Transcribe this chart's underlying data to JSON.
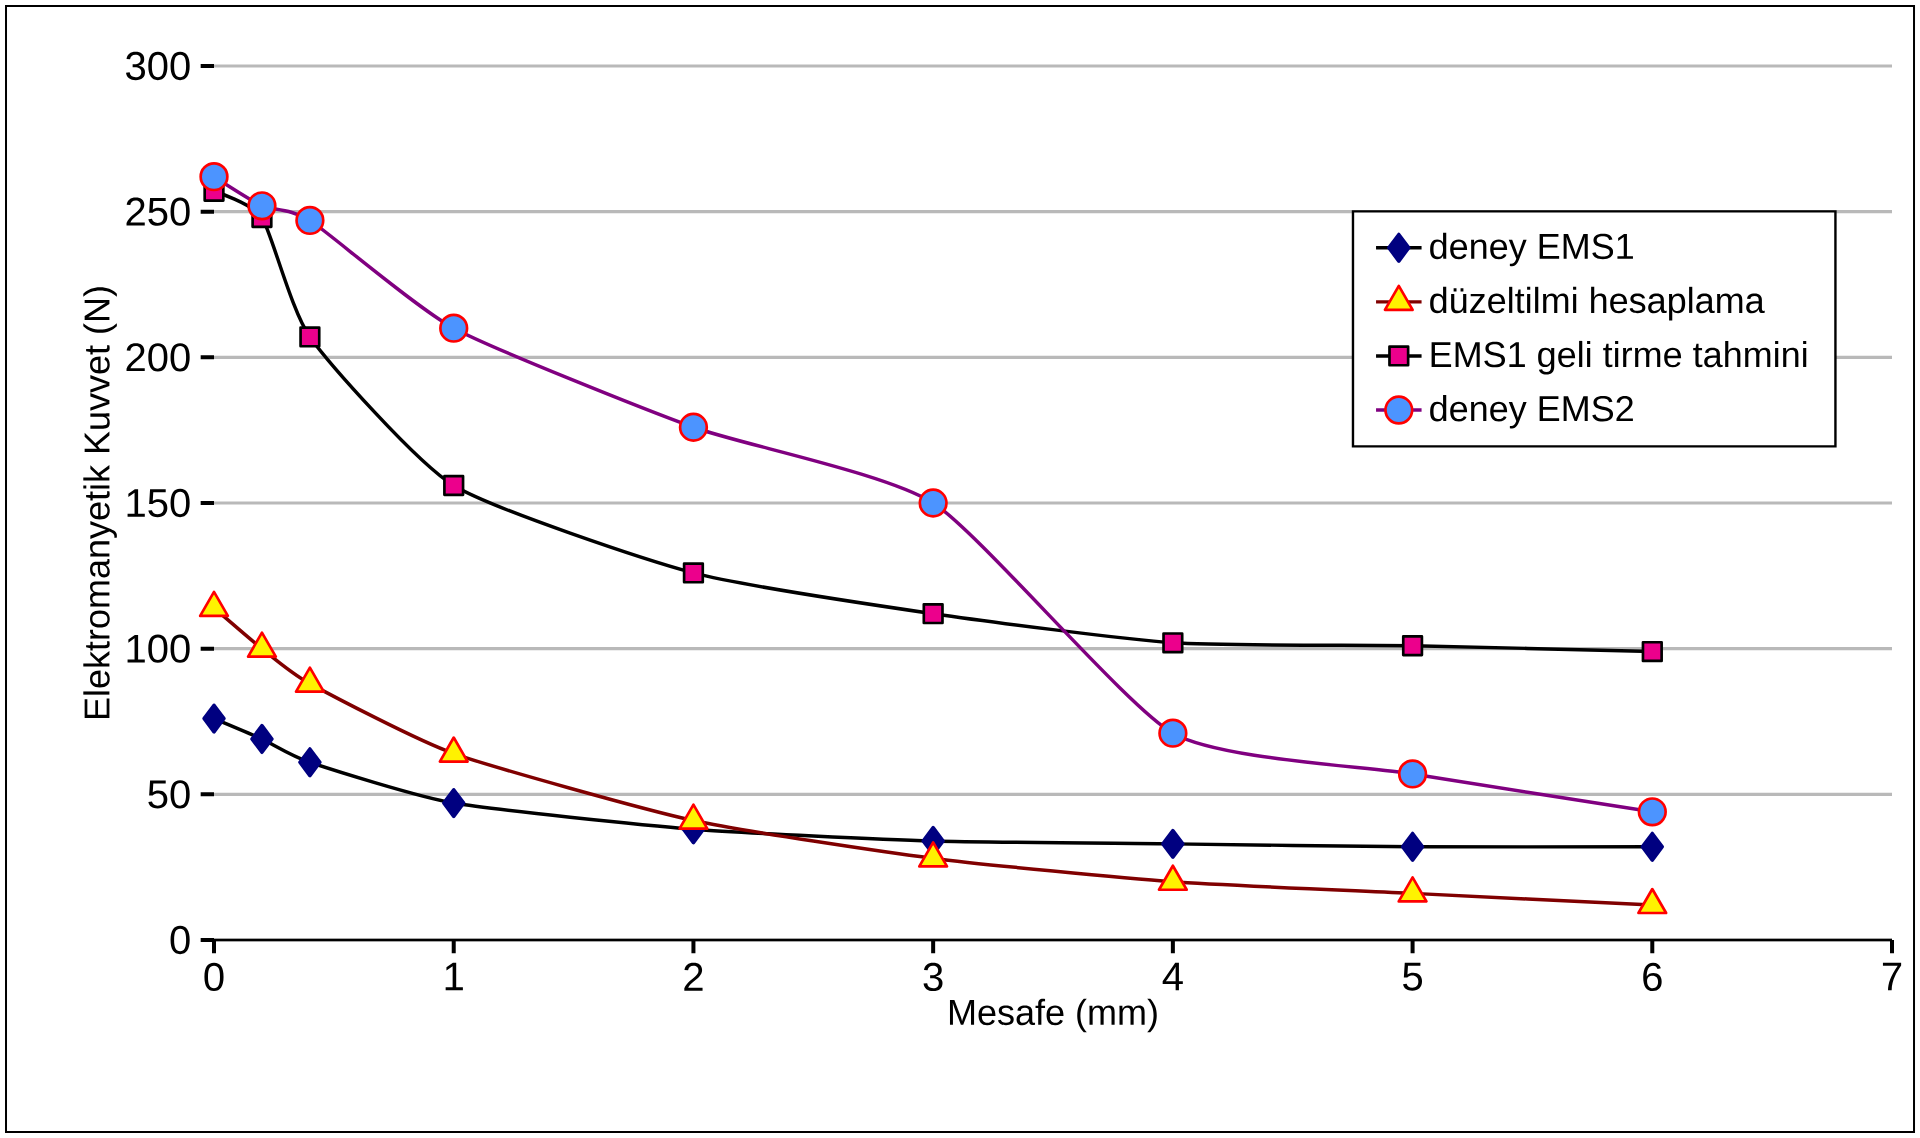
{
  "chart_data": {
    "type": "line",
    "xlabel": "Mesafe (mm)",
    "ylabel": "Elektromanyetik Kuvvet (N)",
    "xlim": [
      0,
      7
    ],
    "xticks": [
      0,
      1,
      2,
      3,
      4,
      5,
      6,
      7
    ],
    "ylim": [
      0,
      300
    ],
    "yticks": [
      0,
      50,
      100,
      150,
      200,
      250,
      300
    ],
    "grid": "y",
    "legend": "top right",
    "x": [
      0,
      0.2,
      0.4,
      1,
      2,
      3,
      4,
      5,
      6
    ],
    "series": [
      {
        "name": "deney EMS1",
        "color": "#000000",
        "marker": "diamond",
        "values": [
          76,
          69,
          61,
          47,
          38,
          34,
          33,
          32,
          32
        ]
      },
      {
        "name": "düzeltilmi   hesaplama",
        "color": "#800000",
        "marker": "triangle",
        "values": [
          114,
          100,
          88,
          64,
          41,
          28,
          20,
          16,
          12
        ]
      },
      {
        "name": "EMS1 geli  tirme tahmini",
        "color": "#000000",
        "marker": "square",
        "values": [
          257,
          248,
          207,
          156,
          126,
          112,
          102,
          101,
          99
        ]
      },
      {
        "name": "deney EMS2",
        "color": "#800080",
        "marker": "circle",
        "values": [
          262,
          252,
          247,
          210,
          176,
          150,
          71,
          57,
          44
        ]
      }
    ]
  }
}
